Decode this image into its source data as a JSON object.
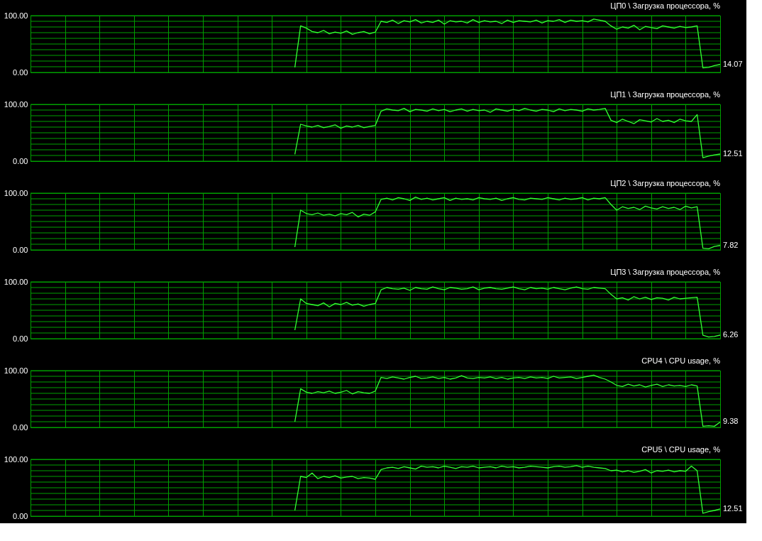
{
  "chart_data": [
    {
      "type": "line",
      "title": "ЦП0 \\ Загрузка процессора, %",
      "categories": [
        null,
        null,
        null,
        null,
        null,
        null,
        null,
        null,
        null,
        null,
        null,
        null,
        null,
        null,
        null,
        null,
        null,
        null,
        null,
        null,
        null,
        null,
        null,
        null,
        null,
        null,
        null,
        null,
        null,
        null,
        null,
        null,
        null,
        null,
        null,
        null,
        null,
        null,
        null,
        null,
        null,
        null,
        null,
        null,
        null,
        null,
        null,
        null,
        null,
        null,
        null,
        null,
        null,
        null,
        null,
        null,
        null,
        null,
        null,
        null,
        null,
        null,
        null,
        null,
        null,
        null,
        null,
        null,
        null,
        null,
        null,
        null,
        null,
        null,
        null,
        null,
        null,
        null,
        null,
        null,
        null,
        null,
        null,
        null,
        null,
        null,
        null,
        null,
        null,
        null,
        null,
        null,
        null,
        null,
        null,
        null,
        null,
        null,
        null,
        null,
        null,
        null,
        null,
        null,
        null,
        null,
        null,
        null,
        null,
        null,
        null,
        null,
        null,
        null,
        null,
        null,
        null,
        null,
        null,
        null,
        null
      ],
      "series": [
        {
          "color": "#33ff33",
          "values": [
            null,
            null,
            null,
            null,
            null,
            null,
            null,
            null,
            null,
            null,
            null,
            null,
            null,
            null,
            null,
            null,
            null,
            null,
            null,
            null,
            null,
            null,
            null,
            null,
            null,
            null,
            null,
            null,
            null,
            null,
            null,
            null,
            null,
            null,
            null,
            null,
            null,
            null,
            null,
            null,
            null,
            null,
            null,
            null,
            null,
            null,
            9,
            82,
            78,
            72,
            70,
            74,
            68,
            71,
            69,
            73,
            67,
            70,
            72,
            68,
            71,
            90,
            88,
            92,
            86,
            91,
            89,
            93,
            87,
            90,
            88,
            92,
            85,
            91,
            89,
            90,
            87,
            93,
            88,
            91,
            89,
            90,
            86,
            92,
            88,
            91,
            90,
            89,
            92,
            87,
            91,
            90,
            93,
            88,
            92,
            90,
            91,
            89,
            94,
            92,
            90,
            82,
            76,
            80,
            78,
            83,
            75,
            81,
            79,
            77,
            82,
            80,
            78,
            81,
            79,
            80,
            82,
            8,
            9,
            12,
            14.07
          ]
        }
      ],
      "ylim": [
        0,
        100
      ],
      "yticks": [
        {
          "value": 0,
          "label": "0.00"
        },
        {
          "value": 10,
          "label": null
        },
        {
          "value": 20,
          "label": null
        },
        {
          "value": 30,
          "label": null
        },
        {
          "value": 40,
          "label": null
        },
        {
          "value": 50,
          "label": null
        },
        {
          "value": 60,
          "label": null
        },
        {
          "value": 70,
          "label": null
        },
        {
          "value": 80,
          "label": null
        },
        {
          "value": 90,
          "label": null
        },
        {
          "value": 100,
          "label": "100.00"
        }
      ],
      "grid": true,
      "tick_labels": "y",
      "annotations": [
        "14.07"
      ]
    },
    {
      "type": "line",
      "title": "ЦП1 \\ Загрузка процессора, %",
      "categories": [
        null,
        null,
        null,
        null,
        null,
        null,
        null,
        null,
        null,
        null,
        null,
        null,
        null,
        null,
        null,
        null,
        null,
        null,
        null,
        null,
        null,
        null,
        null,
        null,
        null,
        null,
        null,
        null,
        null,
        null,
        null,
        null,
        null,
        null,
        null,
        null,
        null,
        null,
        null,
        null,
        null,
        null,
        null,
        null,
        null,
        null,
        null,
        null,
        null,
        null,
        null,
        null,
        null,
        null,
        null,
        null,
        null,
        null,
        null,
        null,
        null,
        null,
        null,
        null,
        null,
        null,
        null,
        null,
        null,
        null,
        null,
        null,
        null,
        null,
        null,
        null,
        null,
        null,
        null,
        null,
        null,
        null,
        null,
        null,
        null,
        null,
        null,
        null,
        null,
        null,
        null,
        null,
        null,
        null,
        null,
        null,
        null,
        null,
        null,
        null,
        null,
        null,
        null,
        null,
        null,
        null,
        null,
        null,
        null,
        null,
        null,
        null,
        null,
        null,
        null,
        null,
        null,
        null,
        null,
        null,
        null
      ],
      "series": [
        {
          "color": "#33ff33",
          "values": [
            null,
            null,
            null,
            null,
            null,
            null,
            null,
            null,
            null,
            null,
            null,
            null,
            null,
            null,
            null,
            null,
            null,
            null,
            null,
            null,
            null,
            null,
            null,
            null,
            null,
            null,
            null,
            null,
            null,
            null,
            null,
            null,
            null,
            null,
            null,
            null,
            null,
            null,
            null,
            null,
            null,
            null,
            null,
            null,
            null,
            null,
            12,
            65,
            62,
            60,
            63,
            59,
            61,
            64,
            58,
            62,
            60,
            63,
            59,
            61,
            63,
            88,
            92,
            90,
            89,
            93,
            87,
            91,
            90,
            88,
            92,
            89,
            91,
            87,
            90,
            92,
            88,
            91,
            89,
            90,
            86,
            92,
            90,
            88,
            91,
            89,
            93,
            90,
            88,
            91,
            90,
            87,
            92,
            89,
            91,
            90,
            88,
            92,
            90,
            91,
            93,
            72,
            68,
            74,
            70,
            66,
            73,
            71,
            69,
            75,
            70,
            72,
            68,
            74,
            71,
            70,
            82,
            6,
            9,
            11,
            12.51
          ]
        }
      ],
      "ylim": [
        0,
        100
      ],
      "yticks": [
        {
          "value": 0,
          "label": "0.00"
        },
        {
          "value": 10,
          "label": null
        },
        {
          "value": 20,
          "label": null
        },
        {
          "value": 30,
          "label": null
        },
        {
          "value": 40,
          "label": null
        },
        {
          "value": 50,
          "label": null
        },
        {
          "value": 60,
          "label": null
        },
        {
          "value": 70,
          "label": null
        },
        {
          "value": 80,
          "label": null
        },
        {
          "value": 90,
          "label": null
        },
        {
          "value": 100,
          "label": "100.00"
        }
      ],
      "grid": true,
      "tick_labels": "y",
      "annotations": [
        "12.51"
      ]
    },
    {
      "type": "line",
      "title": "ЦП2 \\ Загрузка процессора, %",
      "categories": [
        null,
        null,
        null,
        null,
        null,
        null,
        null,
        null,
        null,
        null,
        null,
        null,
        null,
        null,
        null,
        null,
        null,
        null,
        null,
        null,
        null,
        null,
        null,
        null,
        null,
        null,
        null,
        null,
        null,
        null,
        null,
        null,
        null,
        null,
        null,
        null,
        null,
        null,
        null,
        null,
        null,
        null,
        null,
        null,
        null,
        null,
        null,
        null,
        null,
        null,
        null,
        null,
        null,
        null,
        null,
        null,
        null,
        null,
        null,
        null,
        null,
        null,
        null,
        null,
        null,
        null,
        null,
        null,
        null,
        null,
        null,
        null,
        null,
        null,
        null,
        null,
        null,
        null,
        null,
        null,
        null,
        null,
        null,
        null,
        null,
        null,
        null,
        null,
        null,
        null,
        null,
        null,
        null,
        null,
        null,
        null,
        null,
        null,
        null,
        null,
        null,
        null,
        null,
        null,
        null,
        null,
        null,
        null,
        null,
        null,
        null,
        null,
        null,
        null,
        null,
        null,
        null,
        null,
        null,
        null,
        null
      ],
      "series": [
        {
          "color": "#33ff33",
          "values": [
            null,
            null,
            null,
            null,
            null,
            null,
            null,
            null,
            null,
            null,
            null,
            null,
            null,
            null,
            null,
            null,
            null,
            null,
            null,
            null,
            null,
            null,
            null,
            null,
            null,
            null,
            null,
            null,
            null,
            null,
            null,
            null,
            null,
            null,
            null,
            null,
            null,
            null,
            null,
            null,
            null,
            null,
            null,
            null,
            null,
            null,
            5,
            70,
            64,
            62,
            65,
            61,
            63,
            60,
            64,
            62,
            66,
            58,
            63,
            61,
            67,
            89,
            91,
            88,
            92,
            90,
            87,
            93,
            89,
            91,
            88,
            90,
            92,
            87,
            91,
            89,
            90,
            88,
            92,
            90,
            89,
            91,
            87,
            90,
            92,
            89,
            88,
            91,
            90,
            89,
            92,
            90,
            88,
            91,
            89,
            90,
            92,
            88,
            91,
            90,
            92,
            80,
            70,
            76,
            73,
            75,
            71,
            77,
            74,
            72,
            76,
            73,
            75,
            71,
            77,
            74,
            76,
            3,
            2,
            6,
            7.82
          ]
        }
      ],
      "ylim": [
        0,
        100
      ],
      "yticks": [
        {
          "value": 0,
          "label": "0.00"
        },
        {
          "value": 10,
          "label": null
        },
        {
          "value": 20,
          "label": null
        },
        {
          "value": 30,
          "label": null
        },
        {
          "value": 40,
          "label": null
        },
        {
          "value": 50,
          "label": null
        },
        {
          "value": 60,
          "label": null
        },
        {
          "value": 70,
          "label": null
        },
        {
          "value": 80,
          "label": null
        },
        {
          "value": 90,
          "label": null
        },
        {
          "value": 100,
          "label": "100.00"
        }
      ],
      "grid": true,
      "tick_labels": "y",
      "annotations": [
        "7.82"
      ]
    },
    {
      "type": "line",
      "title": "ЦП3 \\ Загрузка процессора, %",
      "categories": [
        null,
        null,
        null,
        null,
        null,
        null,
        null,
        null,
        null,
        null,
        null,
        null,
        null,
        null,
        null,
        null,
        null,
        null,
        null,
        null,
        null,
        null,
        null,
        null,
        null,
        null,
        null,
        null,
        null,
        null,
        null,
        null,
        null,
        null,
        null,
        null,
        null,
        null,
        null,
        null,
        null,
        null,
        null,
        null,
        null,
        null,
        null,
        null,
        null,
        null,
        null,
        null,
        null,
        null,
        null,
        null,
        null,
        null,
        null,
        null,
        null,
        null,
        null,
        null,
        null,
        null,
        null,
        null,
        null,
        null,
        null,
        null,
        null,
        null,
        null,
        null,
        null,
        null,
        null,
        null,
        null,
        null,
        null,
        null,
        null,
        null,
        null,
        null,
        null,
        null,
        null,
        null,
        null,
        null,
        null,
        null,
        null,
        null,
        null,
        null,
        null,
        null,
        null,
        null,
        null,
        null,
        null,
        null,
        null,
        null,
        null,
        null,
        null,
        null,
        null,
        null,
        null,
        null,
        null,
        null,
        null
      ],
      "series": [
        {
          "color": "#33ff33",
          "values": [
            null,
            null,
            null,
            null,
            null,
            null,
            null,
            null,
            null,
            null,
            null,
            null,
            null,
            null,
            null,
            null,
            null,
            null,
            null,
            null,
            null,
            null,
            null,
            null,
            null,
            null,
            null,
            null,
            null,
            null,
            null,
            null,
            null,
            null,
            null,
            null,
            null,
            null,
            null,
            null,
            null,
            null,
            null,
            null,
            null,
            null,
            15,
            70,
            62,
            60,
            58,
            63,
            56,
            62,
            60,
            64,
            59,
            61,
            57,
            60,
            62,
            86,
            90,
            88,
            87,
            89,
            85,
            90,
            88,
            87,
            91,
            88,
            86,
            90,
            89,
            87,
            88,
            91,
            86,
            89,
            90,
            88,
            87,
            89,
            91,
            88,
            86,
            90,
            88,
            89,
            87,
            90,
            88,
            86,
            89,
            91,
            88,
            87,
            90,
            89,
            88,
            78,
            70,
            72,
            68,
            74,
            70,
            73,
            69,
            72,
            71,
            68,
            73,
            70,
            71,
            72,
            73,
            6,
            3,
            4,
            6.26
          ]
        }
      ],
      "ylim": [
        0,
        100
      ],
      "yticks": [
        {
          "value": 0,
          "label": "0.00"
        },
        {
          "value": 10,
          "label": null
        },
        {
          "value": 20,
          "label": null
        },
        {
          "value": 30,
          "label": null
        },
        {
          "value": 40,
          "label": null
        },
        {
          "value": 50,
          "label": null
        },
        {
          "value": 60,
          "label": null
        },
        {
          "value": 70,
          "label": null
        },
        {
          "value": 80,
          "label": null
        },
        {
          "value": 90,
          "label": null
        },
        {
          "value": 100,
          "label": "100.00"
        }
      ],
      "grid": true,
      "tick_labels": "y",
      "annotations": [
        "6.26"
      ]
    },
    {
      "type": "line",
      "title": "CPU4 \\ CPU usage, %",
      "categories": [
        null,
        null,
        null,
        null,
        null,
        null,
        null,
        null,
        null,
        null,
        null,
        null,
        null,
        null,
        null,
        null,
        null,
        null,
        null,
        null,
        null,
        null,
        null,
        null,
        null,
        null,
        null,
        null,
        null,
        null,
        null,
        null,
        null,
        null,
        null,
        null,
        null,
        null,
        null,
        null,
        null,
        null,
        null,
        null,
        null,
        null,
        null,
        null,
        null,
        null,
        null,
        null,
        null,
        null,
        null,
        null,
        null,
        null,
        null,
        null,
        null,
        null,
        null,
        null,
        null,
        null,
        null,
        null,
        null,
        null,
        null,
        null,
        null,
        null,
        null,
        null,
        null,
        null,
        null,
        null,
        null,
        null,
        null,
        null,
        null,
        null,
        null,
        null,
        null,
        null,
        null,
        null,
        null,
        null,
        null,
        null,
        null,
        null,
        null,
        null,
        null,
        null,
        null,
        null,
        null,
        null,
        null,
        null,
        null,
        null,
        null,
        null,
        null,
        null,
        null,
        null,
        null,
        null,
        null,
        null,
        null
      ],
      "series": [
        {
          "color": "#33ff33",
          "values": [
            null,
            null,
            null,
            null,
            null,
            null,
            null,
            null,
            null,
            null,
            null,
            null,
            null,
            null,
            null,
            null,
            null,
            null,
            null,
            null,
            null,
            null,
            null,
            null,
            null,
            null,
            null,
            null,
            null,
            null,
            null,
            null,
            null,
            null,
            null,
            null,
            null,
            null,
            null,
            null,
            null,
            null,
            null,
            null,
            null,
            null,
            10,
            68,
            62,
            60,
            63,
            61,
            64,
            60,
            62,
            65,
            59,
            63,
            61,
            60,
            64,
            88,
            86,
            89,
            87,
            85,
            88,
            90,
            86,
            87,
            89,
            86,
            88,
            85,
            87,
            91,
            87,
            86,
            88,
            87,
            89,
            86,
            88,
            85,
            87,
            88,
            86,
            89,
            87,
            88,
            86,
            90,
            87,
            88,
            89,
            86,
            88,
            90,
            92,
            88,
            85,
            80,
            74,
            72,
            76,
            73,
            75,
            71,
            74,
            76,
            72,
            75,
            73,
            74,
            72,
            75,
            73,
            2,
            3,
            2,
            9.38
          ]
        }
      ],
      "ylim": [
        0,
        100
      ],
      "yticks": [
        {
          "value": 0,
          "label": "0.00"
        },
        {
          "value": 10,
          "label": null
        },
        {
          "value": 20,
          "label": null
        },
        {
          "value": 30,
          "label": null
        },
        {
          "value": 40,
          "label": null
        },
        {
          "value": 50,
          "label": null
        },
        {
          "value": 60,
          "label": null
        },
        {
          "value": 70,
          "label": null
        },
        {
          "value": 80,
          "label": null
        },
        {
          "value": 90,
          "label": null
        },
        {
          "value": 100,
          "label": "100.00"
        }
      ],
      "grid": true,
      "tick_labels": "y",
      "annotations": [
        "9.38"
      ]
    },
    {
      "type": "line",
      "title": "CPU5 \\ CPU usage, %",
      "categories": [
        null,
        null,
        null,
        null,
        null,
        null,
        null,
        null,
        null,
        null,
        null,
        null,
        null,
        null,
        null,
        null,
        null,
        null,
        null,
        null,
        null,
        null,
        null,
        null,
        null,
        null,
        null,
        null,
        null,
        null,
        null,
        null,
        null,
        null,
        null,
        null,
        null,
        null,
        null,
        null,
        null,
        null,
        null,
        null,
        null,
        null,
        null,
        null,
        null,
        null,
        null,
        null,
        null,
        null,
        null,
        null,
        null,
        null,
        null,
        null,
        null,
        null,
        null,
        null,
        null,
        null,
        null,
        null,
        null,
        null,
        null,
        null,
        null,
        null,
        null,
        null,
        null,
        null,
        null,
        null,
        null,
        null,
        null,
        null,
        null,
        null,
        null,
        null,
        null,
        null,
        null,
        null,
        null,
        null,
        null,
        null,
        null,
        null,
        null,
        null,
        null,
        null,
        null,
        null,
        null,
        null,
        null,
        null,
        null,
        null,
        null,
        null,
        null,
        null,
        null,
        null,
        null,
        null,
        null,
        null,
        null
      ],
      "series": [
        {
          "color": "#33ff33",
          "values": [
            null,
            null,
            null,
            null,
            null,
            null,
            null,
            null,
            null,
            null,
            null,
            null,
            null,
            null,
            null,
            null,
            null,
            null,
            null,
            null,
            null,
            null,
            null,
            null,
            null,
            null,
            null,
            null,
            null,
            null,
            null,
            null,
            null,
            null,
            null,
            null,
            null,
            null,
            null,
            null,
            null,
            null,
            null,
            null,
            null,
            null,
            10,
            70,
            68,
            76,
            66,
            70,
            68,
            71,
            67,
            69,
            70,
            66,
            68,
            67,
            65,
            82,
            85,
            86,
            84,
            87,
            85,
            83,
            88,
            86,
            87,
            85,
            88,
            86,
            84,
            87,
            86,
            88,
            85,
            86,
            87,
            85,
            88,
            86,
            87,
            85,
            86,
            88,
            87,
            86,
            85,
            87,
            88,
            86,
            87,
            89,
            86,
            88,
            86,
            85,
            84,
            80,
            81,
            78,
            80,
            77,
            79,
            82,
            76,
            80,
            79,
            81,
            78,
            80,
            79,
            88,
            80,
            5,
            8,
            10,
            12.51
          ]
        }
      ],
      "ylim": [
        0,
        100
      ],
      "yticks": [
        {
          "value": 0,
          "label": "0.00"
        },
        {
          "value": 10,
          "label": null
        },
        {
          "value": 20,
          "label": null
        },
        {
          "value": 30,
          "label": null
        },
        {
          "value": 40,
          "label": null
        },
        {
          "value": 50,
          "label": null
        },
        {
          "value": 60,
          "label": null
        },
        {
          "value": 70,
          "label": null
        },
        {
          "value": 80,
          "label": null
        },
        {
          "value": 90,
          "label": null
        },
        {
          "value": 100,
          "label": "100.00"
        }
      ],
      "grid": true,
      "tick_labels": "y",
      "annotations": [
        "12.51"
      ]
    }
  ]
}
